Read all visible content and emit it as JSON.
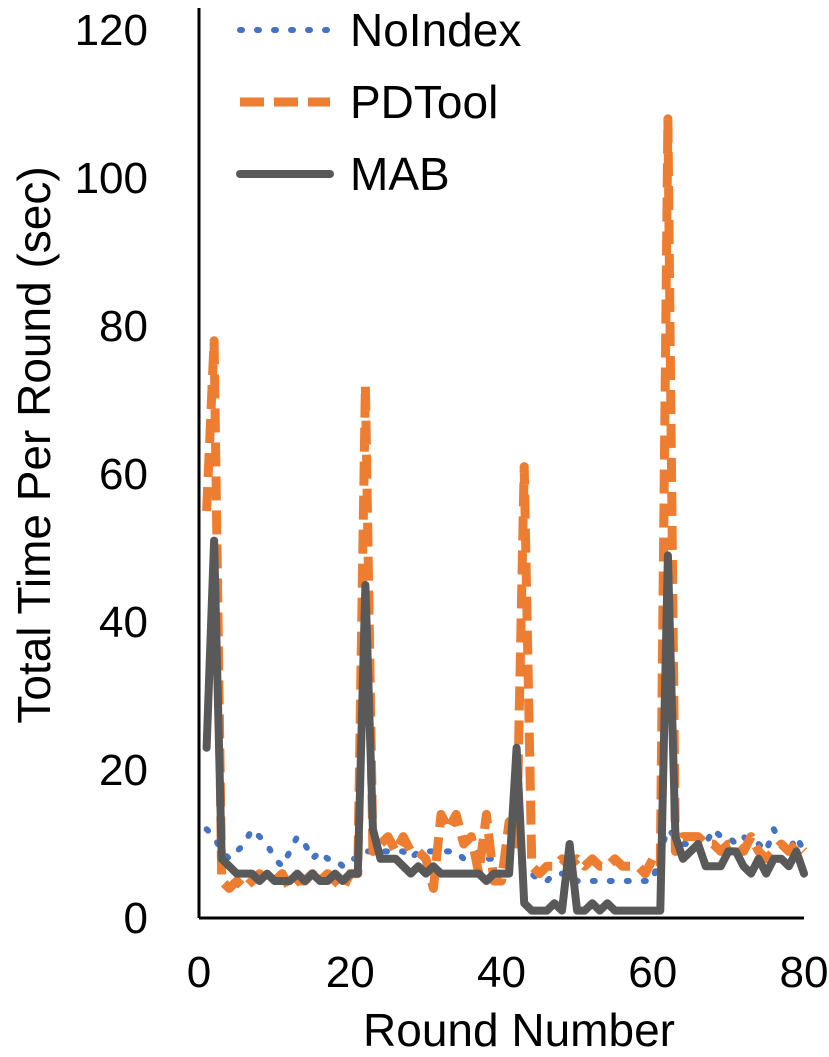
{
  "chart_data": {
    "type": "line",
    "title": "",
    "xlabel": "Round Number",
    "ylabel": "Total Time Per Round (sec)",
    "xlim": [
      0,
      80
    ],
    "ylim": [
      0,
      120
    ],
    "xticks": [
      "0",
      "20",
      "40",
      "60",
      "80"
    ],
    "yticks": [
      "0",
      "20",
      "40",
      "60",
      "80",
      "100",
      "120"
    ],
    "grid": false,
    "legend_position": "top",
    "x": [
      1,
      2,
      3,
      4,
      5,
      6,
      7,
      8,
      9,
      10,
      11,
      12,
      13,
      14,
      15,
      16,
      17,
      18,
      19,
      20,
      21,
      22,
      23,
      24,
      25,
      26,
      27,
      28,
      29,
      30,
      31,
      32,
      33,
      34,
      35,
      36,
      37,
      38,
      39,
      40,
      41,
      42,
      43,
      44,
      45,
      46,
      47,
      48,
      49,
      50,
      51,
      52,
      53,
      54,
      55,
      56,
      57,
      58,
      59,
      60,
      61,
      62,
      63,
      64,
      65,
      66,
      67,
      68,
      69,
      70,
      71,
      72,
      73,
      74,
      75,
      76,
      77,
      78,
      79,
      80
    ],
    "series": [
      {
        "name": "NoIndex",
        "style": "dotted",
        "color": "#4472C4",
        "values": [
          12,
          11,
          9,
          8,
          9,
          10,
          12,
          11,
          10,
          8,
          7,
          9,
          11,
          10,
          8,
          9,
          8,
          8,
          7,
          8,
          8,
          9,
          9,
          9,
          9,
          9,
          9,
          8,
          9,
          9,
          9,
          9,
          9,
          9,
          8,
          8,
          9,
          8,
          8,
          8,
          8,
          8,
          7,
          6,
          5,
          5,
          6,
          6,
          6,
          5,
          5,
          5,
          5,
          5,
          5,
          5,
          5,
          5,
          5,
          5,
          9,
          12,
          11,
          10,
          10,
          11,
          10,
          12,
          11,
          11,
          10,
          11,
          10,
          10,
          9,
          12,
          10,
          9,
          11,
          9
        ]
      },
      {
        "name": "PDTool",
        "style": "dashed",
        "color": "#ED7D31",
        "values": [
          55,
          78,
          5,
          4,
          5,
          4,
          5,
          6,
          5,
          5,
          6,
          4,
          5,
          5,
          6,
          5,
          6,
          5,
          4,
          6,
          6,
          72,
          9,
          10,
          11,
          9,
          11,
          9,
          9,
          8,
          4,
          14,
          12,
          14,
          10,
          11,
          6,
          14,
          5,
          5,
          13,
          10,
          61,
          7,
          6,
          7,
          7,
          8,
          7,
          8,
          7,
          8,
          7,
          7,
          8,
          7,
          7,
          7,
          6,
          8,
          7,
          108,
          9,
          11,
          11,
          11,
          10,
          10,
          9,
          10,
          10,
          9,
          11,
          9,
          8,
          9,
          10,
          9,
          10,
          9
        ]
      },
      {
        "name": "MAB",
        "style": "solid",
        "color": "#595959",
        "values": [
          23,
          51,
          8,
          7,
          6,
          6,
          6,
          5,
          6,
          5,
          5,
          5,
          6,
          5,
          6,
          5,
          5,
          6,
          5,
          6,
          6,
          45,
          12,
          8,
          8,
          8,
          7,
          6,
          7,
          6,
          7,
          6,
          6,
          6,
          6,
          6,
          6,
          5,
          6,
          6,
          6,
          23,
          2,
          1,
          1,
          1,
          2,
          1,
          10,
          1,
          1,
          2,
          1,
          2,
          1,
          1,
          1,
          1,
          1,
          1,
          1,
          49,
          11,
          8,
          9,
          10,
          7,
          7,
          7,
          9,
          9,
          7,
          6,
          8,
          6,
          8,
          8,
          7,
          9,
          6
        ]
      }
    ]
  }
}
